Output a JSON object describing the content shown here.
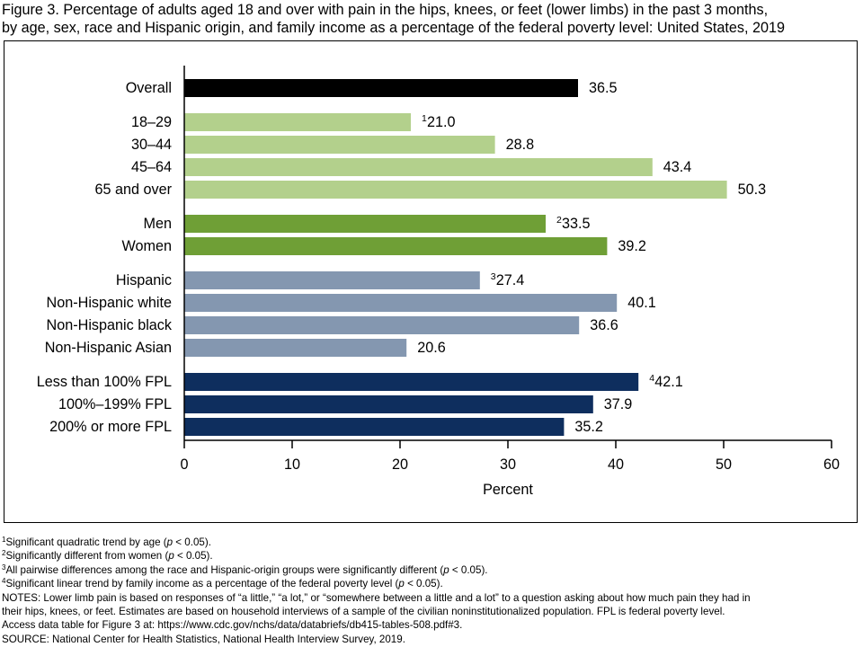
{
  "title": {
    "line1": "Figure 3. Percentage of adults aged 18 and over with pain in the hips, knees, or feet (lower limbs) in the past 3 months,",
    "line2": "by age, sex, race and Hispanic origin, and family income as a percentage of the federal poverty level: United States, 2019"
  },
  "chart_data": {
    "type": "bar",
    "orientation": "horizontal",
    "xlabel": "Percent",
    "xlim": [
      0,
      60
    ],
    "xticks": [
      "0",
      "10",
      "20",
      "30",
      "40",
      "50",
      "60"
    ],
    "grid": false,
    "colors": {
      "overall": "#000000",
      "age": "#b3d08c",
      "sex": "#6f9f36",
      "race": "#8497b0",
      "income": "#0e2e5e"
    },
    "groups": [
      {
        "key": "overall",
        "bars": [
          {
            "label": "Overall",
            "value": 36.5,
            "value_label": "36.5"
          }
        ]
      },
      {
        "key": "age",
        "bars": [
          {
            "label": "18–29",
            "value": 21.0,
            "value_label": "21.0",
            "footnote": "1"
          },
          {
            "label": "30–44",
            "value": 28.8,
            "value_label": "28.8"
          },
          {
            "label": "45–64",
            "value": 43.4,
            "value_label": "43.4"
          },
          {
            "label": "65 and over",
            "value": 50.3,
            "value_label": "50.3"
          }
        ]
      },
      {
        "key": "sex",
        "bars": [
          {
            "label": "Men",
            "value": 33.5,
            "value_label": "33.5",
            "footnote": "2"
          },
          {
            "label": "Women",
            "value": 39.2,
            "value_label": "39.2"
          }
        ]
      },
      {
        "key": "race",
        "bars": [
          {
            "label": "Hispanic",
            "value": 27.4,
            "value_label": "27.4",
            "footnote": "3"
          },
          {
            "label": "Non-Hispanic white",
            "value": 40.1,
            "value_label": "40.1"
          },
          {
            "label": "Non-Hispanic black",
            "value": 36.6,
            "value_label": "36.6"
          },
          {
            "label": "Non-Hispanic Asian",
            "value": 20.6,
            "value_label": "20.6"
          }
        ]
      },
      {
        "key": "income",
        "bars": [
          {
            "label": "Less than 100% FPL",
            "value": 42.1,
            "value_label": "42.1",
            "footnote": "4"
          },
          {
            "label": "100%–199% FPL",
            "value": 37.9,
            "value_label": "37.9"
          },
          {
            "label": "200% or more FPL",
            "value": 35.2,
            "value_label": "35.2"
          }
        ]
      }
    ]
  },
  "footnotes": {
    "fn1": {
      "mark": "1",
      "before": "Significant quadratic trend by age (",
      "italic": "p",
      "after": " < 0.05)."
    },
    "fn2": {
      "mark": "2",
      "before": "Significantly different from women (",
      "italic": "p",
      "after": " < 0.05)."
    },
    "fn3": {
      "mark": "3",
      "before": "All pairwise differences among the race and Hispanic-origin groups were significantly different (",
      "italic": "p",
      "after": " < 0.05)."
    },
    "fn4": {
      "mark": "4",
      "before": "Significant linear trend by family income as a percentage of the federal poverty level (",
      "italic": "p",
      "after": " < 0.05)."
    }
  },
  "notes": {
    "line1": "NOTES: Lower limb pain is based on responses of “a little,” “a lot,” or “somewhere between a little and a lot” to a question asking about how much pain they had in",
    "line2": "their hips, knees, or feet. Estimates are based on household interviews of a sample of the civilian noninstitutionalized population. FPL is federal poverty level.",
    "access": "Access data table for Figure 3 at: https://www.cdc.gov/nchs/data/databriefs/db415-tables-508.pdf#3.",
    "source": "SOURCE: National Center for Health Statistics, National Health Interview Survey, 2019."
  }
}
